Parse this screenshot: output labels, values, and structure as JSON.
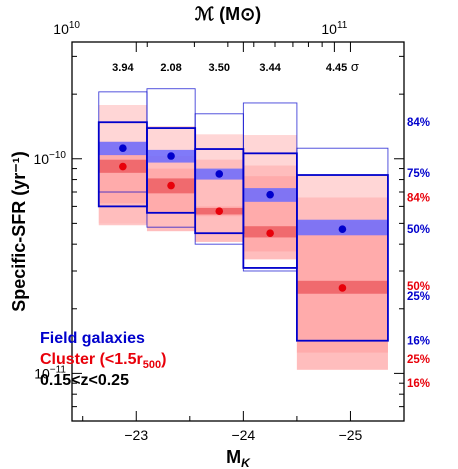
{
  "chart_data": {
    "type": "box",
    "xlabel": "M_K",
    "ylabel": "Specific-SFR (yr⁻¹)",
    "top_axis_label": "ℳ (M⊙)",
    "x_ticks": [
      "−23",
      "−24",
      "−25"
    ],
    "x_tick_values": [
      -23,
      -24,
      -25
    ],
    "top_ticks": [
      "10^10",
      "10^11"
    ],
    "top_tick_values": [
      10000000000,
      100000000000
    ],
    "y_ticks": [
      "10^-10",
      "10^-11"
    ],
    "y_tick_values": [
      1e-10,
      1e-11
    ],
    "ylim": [
      6e-12,
      3.5e-10
    ],
    "xlim": [
      -22.4,
      -25.5
    ],
    "y_scale": "log",
    "significance": [
      {
        "value": "3.94",
        "sigma": ""
      },
      {
        "value": "2.08",
        "sigma": ""
      },
      {
        "value": "3.50",
        "sigma": ""
      },
      {
        "value": "3.44",
        "sigma": ""
      },
      {
        "value": "4.45",
        "sigma": "σ"
      }
    ],
    "bins": [
      {
        "x_left": -22.65,
        "x_right": -23.1,
        "field": {
          "median": 1.12e-10,
          "p84": 1.48e-10,
          "p16": 6e-11,
          "p75": 1.31e-10,
          "p25": 8.2e-11,
          "band": [
            1.04e-10,
            1.2e-10
          ],
          "range": [
            7e-11,
            2.05e-10
          ]
        },
        "cluster": {
          "median": 9.2e-11,
          "p84": 1.2e-10,
          "p16": 4.9e-11,
          "p75": 1.05e-10,
          "p25": 6.2e-11,
          "band": [
            8.6e-11,
            9.9e-11
          ],
          "range": [
            5e-11,
            1.78e-10
          ]
        }
      },
      {
        "x_left": -23.1,
        "x_right": -23.55,
        "field": {
          "median": 1.03e-10,
          "p84": 1.39e-10,
          "p16": 5.6e-11,
          "p75": 1.28e-10,
          "p25": 6.7e-11,
          "band": [
            9.6e-11,
            1.1e-10
          ],
          "range": [
            4.8e-11,
            2.12e-10
          ]
        },
        "cluster": {
          "median": 7.5e-11,
          "p84": 1.03e-10,
          "p16": 4.6e-11,
          "p75": 9e-11,
          "p25": 5.6e-11,
          "band": [
            6.9e-11,
            8.1e-11
          ],
          "range": [
            4.6e-11,
            1.42e-10
          ]
        }
      },
      {
        "x_left": -23.55,
        "x_right": -24.0,
        "field": {
          "median": 8.5e-11,
          "p84": 1.11e-10,
          "p16": 4.5e-11,
          "p75": 1.05e-10,
          "p25": 5.6e-11,
          "band": [
            8e-11,
            9e-11
          ],
          "range": [
            4e-11,
            1.62e-10
          ]
        },
        "cluster": {
          "median": 5.7e-11,
          "p84": 9.9e-11,
          "p16": 4.1e-11,
          "p75": 6e-11,
          "p25": 5.4e-11,
          "band": [
            5.5e-11,
            5.9e-11
          ],
          "range": [
            4.1e-11,
            1.3e-10
          ]
        }
      },
      {
        "x_left": -24.0,
        "x_right": -24.5,
        "field": {
          "median": 6.8e-11,
          "p84": 1.06e-10,
          "p16": 3.1e-11,
          "p75": 1e-10,
          "p25": 3.7e-11,
          "band": [
            6.3e-11,
            7.3e-11
          ],
          "range": [
            3e-11,
            1.82e-10
          ]
        },
        "cluster": {
          "median": 4.5e-11,
          "p84": 9.3e-11,
          "p16": 3.4e-11,
          "p75": 8.3e-11,
          "p25": 3.7e-11,
          "band": [
            4.3e-11,
            4.85e-11
          ],
          "range": [
            3.4e-11,
            1.29e-10
          ]
        }
      },
      {
        "x_left": -24.5,
        "x_right": -25.35,
        "field": {
          "median": 4.7e-11,
          "p84": 8.4e-11,
          "p16": 1.42e-11,
          "p75": 7.5e-11,
          "p25": 2.35e-11,
          "band": [
            4.4e-11,
            5.2e-11
          ],
          "range": [
            1.42e-11,
            1.12e-10
          ]
        },
        "cluster": {
          "median": 2.5e-11,
          "p84": 6.6e-11,
          "p16": 1.04e-11,
          "p75": 5.1e-11,
          "p25": 1.25e-11,
          "band": [
            2.35e-11,
            2.7e-11
          ],
          "range": [
            1.04e-11,
            8.4e-11
          ]
        }
      }
    ],
    "right_labels": [
      {
        "text": "84%",
        "series": "field",
        "y": 1.48e-10
      },
      {
        "text": "75%",
        "series": "field",
        "y": 8.6e-11
      },
      {
        "text": "84%",
        "series": "cluster",
        "y": 6.6e-11
      },
      {
        "text": "50%",
        "series": "field",
        "y": 4.7e-11
      },
      {
        "text": "50%",
        "series": "cluster",
        "y": 2.55e-11
      },
      {
        "text": "25%",
        "series": "field",
        "y": 2.3e-11
      },
      {
        "text": "16%",
        "series": "field",
        "y": 1.42e-11
      },
      {
        "text": "25%",
        "series": "cluster",
        "y": 1.17e-11
      },
      {
        "text": "16%",
        "series": "cluster",
        "y": 9e-12
      }
    ],
    "legend": {
      "field": "Field galaxies",
      "cluster_prefix": "Cluster (<1.5r",
      "cluster_sub": "500",
      "cluster_suffix": ")",
      "redshift": "0.15<z<0.25"
    },
    "colors": {
      "field": "#0000cc",
      "field_band": "#6a6aff",
      "cluster": "#e8000a",
      "cluster_band": "#f06a6e",
      "cluster_light": "#ffd6d6",
      "cluster_mid": "#ffb4b4",
      "axis": "#000000"
    },
    "grid": false
  }
}
